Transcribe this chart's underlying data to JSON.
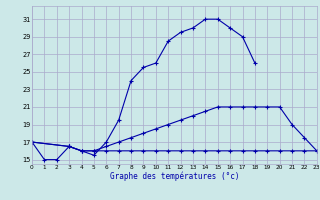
{
  "xlabel": "Graphe des températures (°c)",
  "bg_color": "#cce8e8",
  "grid_color": "#aaaacc",
  "line_color": "#0000aa",
  "x_ticks": [
    0,
    1,
    2,
    3,
    4,
    5,
    6,
    7,
    8,
    9,
    10,
    11,
    12,
    13,
    14,
    15,
    16,
    17,
    18,
    19,
    20,
    21,
    22,
    23
  ],
  "y_ticks": [
    15,
    17,
    19,
    21,
    23,
    25,
    27,
    29,
    31
  ],
  "xlim": [
    0,
    23
  ],
  "ylim": [
    14.5,
    32.5
  ],
  "series": [
    {
      "x": [
        0,
        1,
        2,
        3,
        4,
        5,
        6,
        7,
        8,
        9,
        10,
        11,
        12,
        13,
        14,
        15,
        16,
        17,
        18
      ],
      "y": [
        17,
        15,
        15,
        16.5,
        16.0,
        15.5,
        17,
        19.5,
        24.0,
        25.5,
        26.0,
        28.5,
        29.5,
        30.0,
        31,
        31,
        30,
        29,
        26
      ]
    },
    {
      "x": [
        0,
        3,
        4,
        5,
        6,
        7,
        8,
        9,
        10,
        11,
        12,
        13,
        14,
        15,
        16,
        17,
        18,
        19,
        20,
        21,
        22,
        23
      ],
      "y": [
        17,
        16.5,
        16.0,
        16,
        16,
        16,
        16,
        16,
        16,
        16,
        16,
        16,
        16,
        16,
        16,
        16,
        16,
        16,
        16,
        16,
        16,
        16
      ]
    },
    {
      "x": [
        0,
        3,
        4,
        5,
        6,
        7,
        8,
        9,
        10,
        11,
        12,
        13,
        14,
        15,
        16,
        17,
        18,
        19,
        20,
        21,
        22,
        23
      ],
      "y": [
        17,
        16.5,
        16.0,
        16.0,
        16.5,
        17.0,
        17.5,
        18.0,
        18.5,
        19.0,
        19.5,
        20.0,
        20.5,
        21.0,
        21.0,
        21.0,
        21.0,
        21.0,
        21.0,
        19.0,
        17.5,
        16.0
      ]
    }
  ]
}
